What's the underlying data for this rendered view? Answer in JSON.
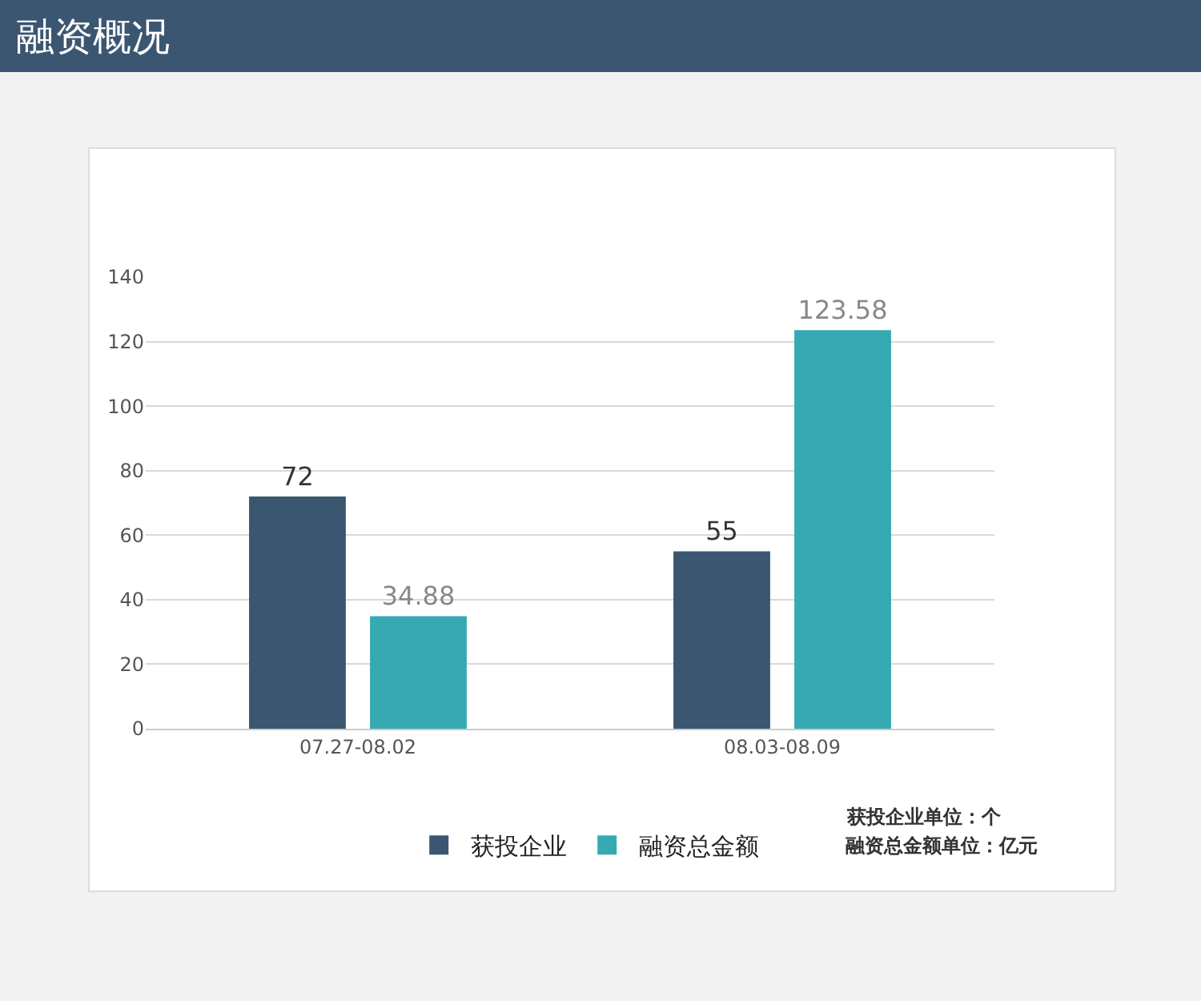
{
  "chart_data": {
    "type": "bar",
    "title": "融资概况",
    "categories": [
      "07.27-08.02",
      "08.03-08.09"
    ],
    "series": [
      {
        "name": "获投企业",
        "color": "#3b5670",
        "values": [
          72,
          55
        ]
      },
      {
        "name": "融资总金额",
        "color": "#36a9b3",
        "values": [
          34.88,
          123.58
        ]
      }
    ],
    "ylim": [
      0,
      140
    ],
    "yticks": [
      0,
      20,
      40,
      60,
      80,
      100,
      120,
      140
    ],
    "grid": "y",
    "legend": "bottom",
    "data_labels": true,
    "annotations": [
      "获投企业单位：个",
      "融资总金额单位：亿元"
    ]
  }
}
